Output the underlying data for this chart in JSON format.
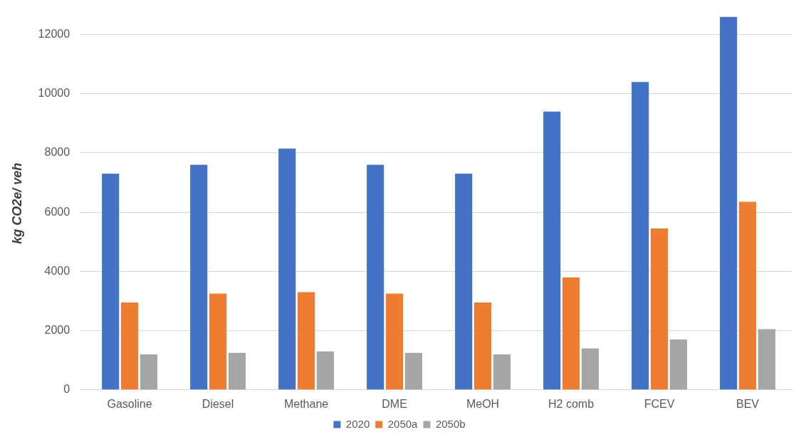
{
  "chart_data": {
    "type": "bar",
    "ylabel": "kg CO2e/ veh",
    "categories": [
      "Gasoline",
      "Diesel",
      "Methane",
      "DME",
      "MeOH",
      "H2 comb",
      "FCEV",
      "BEV"
    ],
    "series": [
      {
        "name": "2020",
        "color": "#4472c4",
        "values": [
          7300,
          7600,
          8150,
          7600,
          7300,
          9400,
          10400,
          12600
        ]
      },
      {
        "name": "2050a",
        "color": "#ed7d31",
        "values": [
          2950,
          3250,
          3300,
          3250,
          2950,
          3800,
          5450,
          6350
        ]
      },
      {
        "name": "2050b",
        "color": "#a5a5a5",
        "values": [
          1200,
          1250,
          1300,
          1250,
          1200,
          1400,
          1700,
          2050
        ]
      }
    ],
    "ylim": [
      0,
      12600
    ],
    "yticks": [
      0,
      2000,
      4000,
      6000,
      8000,
      10000,
      12000
    ],
    "grid": "y",
    "legend": "bottom"
  }
}
